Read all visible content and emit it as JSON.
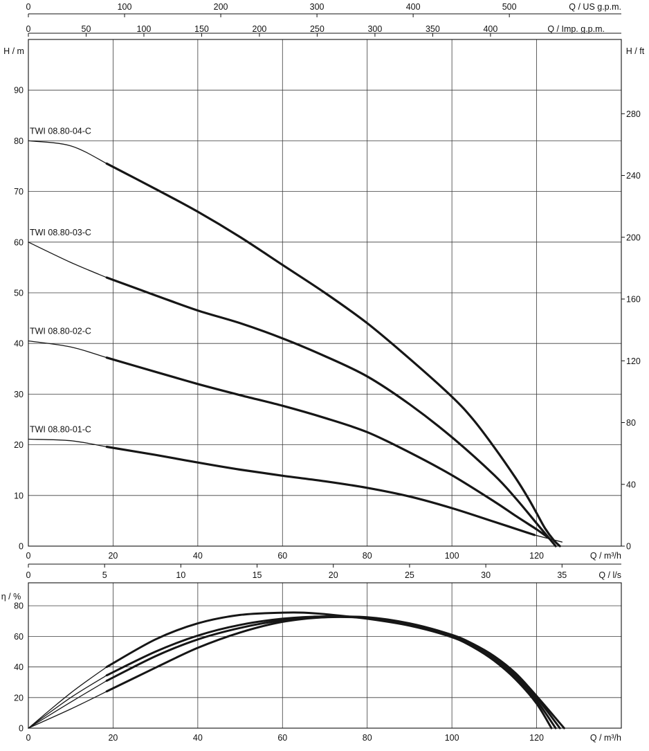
{
  "chart_data": [
    {
      "type": "line",
      "ylabel": "H / m",
      "ylabel_right": "H / ft",
      "xlabel": "Q / m³/h",
      "xlabel_top_1": "Q / US g.p.m.",
      "xlabel_top_2": "Q / Imp. g.p.m.",
      "xlabel_mid": "Q / l/s",
      "x_ticks": [
        "0",
        "20",
        "40",
        "60",
        "80",
        "100",
        "120"
      ],
      "x_range": [
        0,
        140
      ],
      "y_ticks": [
        "0",
        "10",
        "20",
        "30",
        "40",
        "50",
        "60",
        "70",
        "80",
        "90"
      ],
      "y_range": [
        0,
        100
      ],
      "y_right_ticks": [
        "0",
        "40",
        "80",
        "120",
        "160",
        "200",
        "240",
        "280"
      ],
      "top_us_ticks": [
        "0",
        "100",
        "200",
        "300",
        "400",
        "500"
      ],
      "top_imp_ticks": [
        "0",
        "50",
        "100",
        "150",
        "200",
        "250",
        "300",
        "350",
        "400"
      ],
      "mid_ls_ticks": [
        "0",
        "5",
        "10",
        "15",
        "20",
        "25",
        "30",
        "35"
      ],
      "grid": true,
      "series": [
        {
          "name": "TWI 08.80-04-C",
          "x": [
            0,
            10,
            18.5,
            30,
            40,
            50,
            60,
            70,
            80,
            90,
            100,
            105,
            110,
            115,
            118,
            120,
            122,
            124,
            125.5
          ],
          "y": [
            80,
            79,
            75.5,
            70.5,
            66,
            61,
            55.5,
            50,
            44,
            37,
            29.5,
            25,
            19.5,
            13.5,
            9.5,
            6.5,
            3.5,
            1.2,
            0
          ]
        },
        {
          "name": "TWI 08.80-03-C",
          "x": [
            0,
            10,
            18.5,
            30,
            40,
            50,
            60,
            70,
            80,
            90,
            100,
            110,
            115,
            120,
            122,
            124.5
          ],
          "y": [
            60,
            56,
            53,
            49.5,
            46.5,
            44,
            41,
            37.5,
            33.5,
            28,
            21.5,
            14,
            9.5,
            4.5,
            2.5,
            0
          ]
        },
        {
          "name": "TWI 08.80-02-C",
          "x": [
            0,
            10,
            18.5,
            30,
            40,
            50,
            60,
            70,
            80,
            90,
            100,
            110,
            115,
            120,
            123
          ],
          "y": [
            40.5,
            39.3,
            37.2,
            34.4,
            32,
            29.8,
            27.7,
            25.3,
            22.5,
            18.5,
            14,
            8.8,
            6,
            3.3,
            1.5
          ]
        },
        {
          "name": "TWI 08.80-01-C",
          "x": [
            0,
            10,
            18.5,
            30,
            40,
            50,
            60,
            70,
            80,
            90,
            100,
            110,
            119.5
          ],
          "y": [
            21.1,
            20.8,
            19.6,
            18,
            16.5,
            15.1,
            13.9,
            12.8,
            11.5,
            9.8,
            7.5,
            4.8,
            2.2
          ]
        },
        {
          "name": "",
          "x": [
            119.5,
            126
          ],
          "y": [
            2.2,
            0.8
          ]
        }
      ]
    },
    {
      "type": "line",
      "ylabel": "η / %",
      "xlabel": "Q / m³/h",
      "x_ticks": [
        "0",
        "20",
        "40",
        "60",
        "80",
        "100",
        "120"
      ],
      "x_range": [
        0,
        140
      ],
      "y_ticks": [
        "0",
        "20",
        "40",
        "60",
        "80"
      ],
      "y_range": [
        0,
        95
      ],
      "grid": true,
      "series": [
        {
          "name": "",
          "x": [
            0,
            10,
            18.5,
            30,
            40,
            50,
            60,
            65,
            70,
            80,
            90,
            100,
            105,
            110,
            115,
            120,
            123.5
          ],
          "y": [
            0,
            23,
            40,
            58,
            68.5,
            74,
            75.5,
            75.5,
            74.5,
            71.5,
            67,
            59.5,
            53,
            44,
            32,
            16,
            0
          ]
        },
        {
          "name": "",
          "x": [
            0,
            10,
            18.5,
            30,
            40,
            50,
            60,
            70,
            80,
            90,
            100,
            105,
            110,
            115,
            120,
            124.5
          ],
          "y": [
            0,
            20,
            34.5,
            50,
            60.5,
            67.5,
            71.5,
            73,
            72,
            67.5,
            59.5,
            53,
            44.5,
            33.5,
            18,
            0
          ]
        },
        {
          "name": "",
          "x": [
            0,
            10,
            18.5,
            30,
            40,
            50,
            60,
            70,
            80,
            90,
            100,
            105,
            110,
            115,
            120,
            125.5
          ],
          "y": [
            0,
            17,
            31,
            47,
            58,
            65.5,
            70.5,
            72.5,
            72,
            67.5,
            60,
            54,
            46,
            35,
            20,
            0
          ]
        },
        {
          "name": "",
          "x": [
            0,
            10,
            18.5,
            30,
            40,
            50,
            60,
            70,
            80,
            90,
            100,
            105,
            110,
            115,
            120,
            126.5
          ],
          "y": [
            0,
            12.5,
            24,
            39.5,
            52.5,
            62.5,
            69.5,
            72.5,
            72.5,
            68.5,
            61,
            55,
            47,
            36,
            21,
            0
          ]
        }
      ]
    }
  ]
}
